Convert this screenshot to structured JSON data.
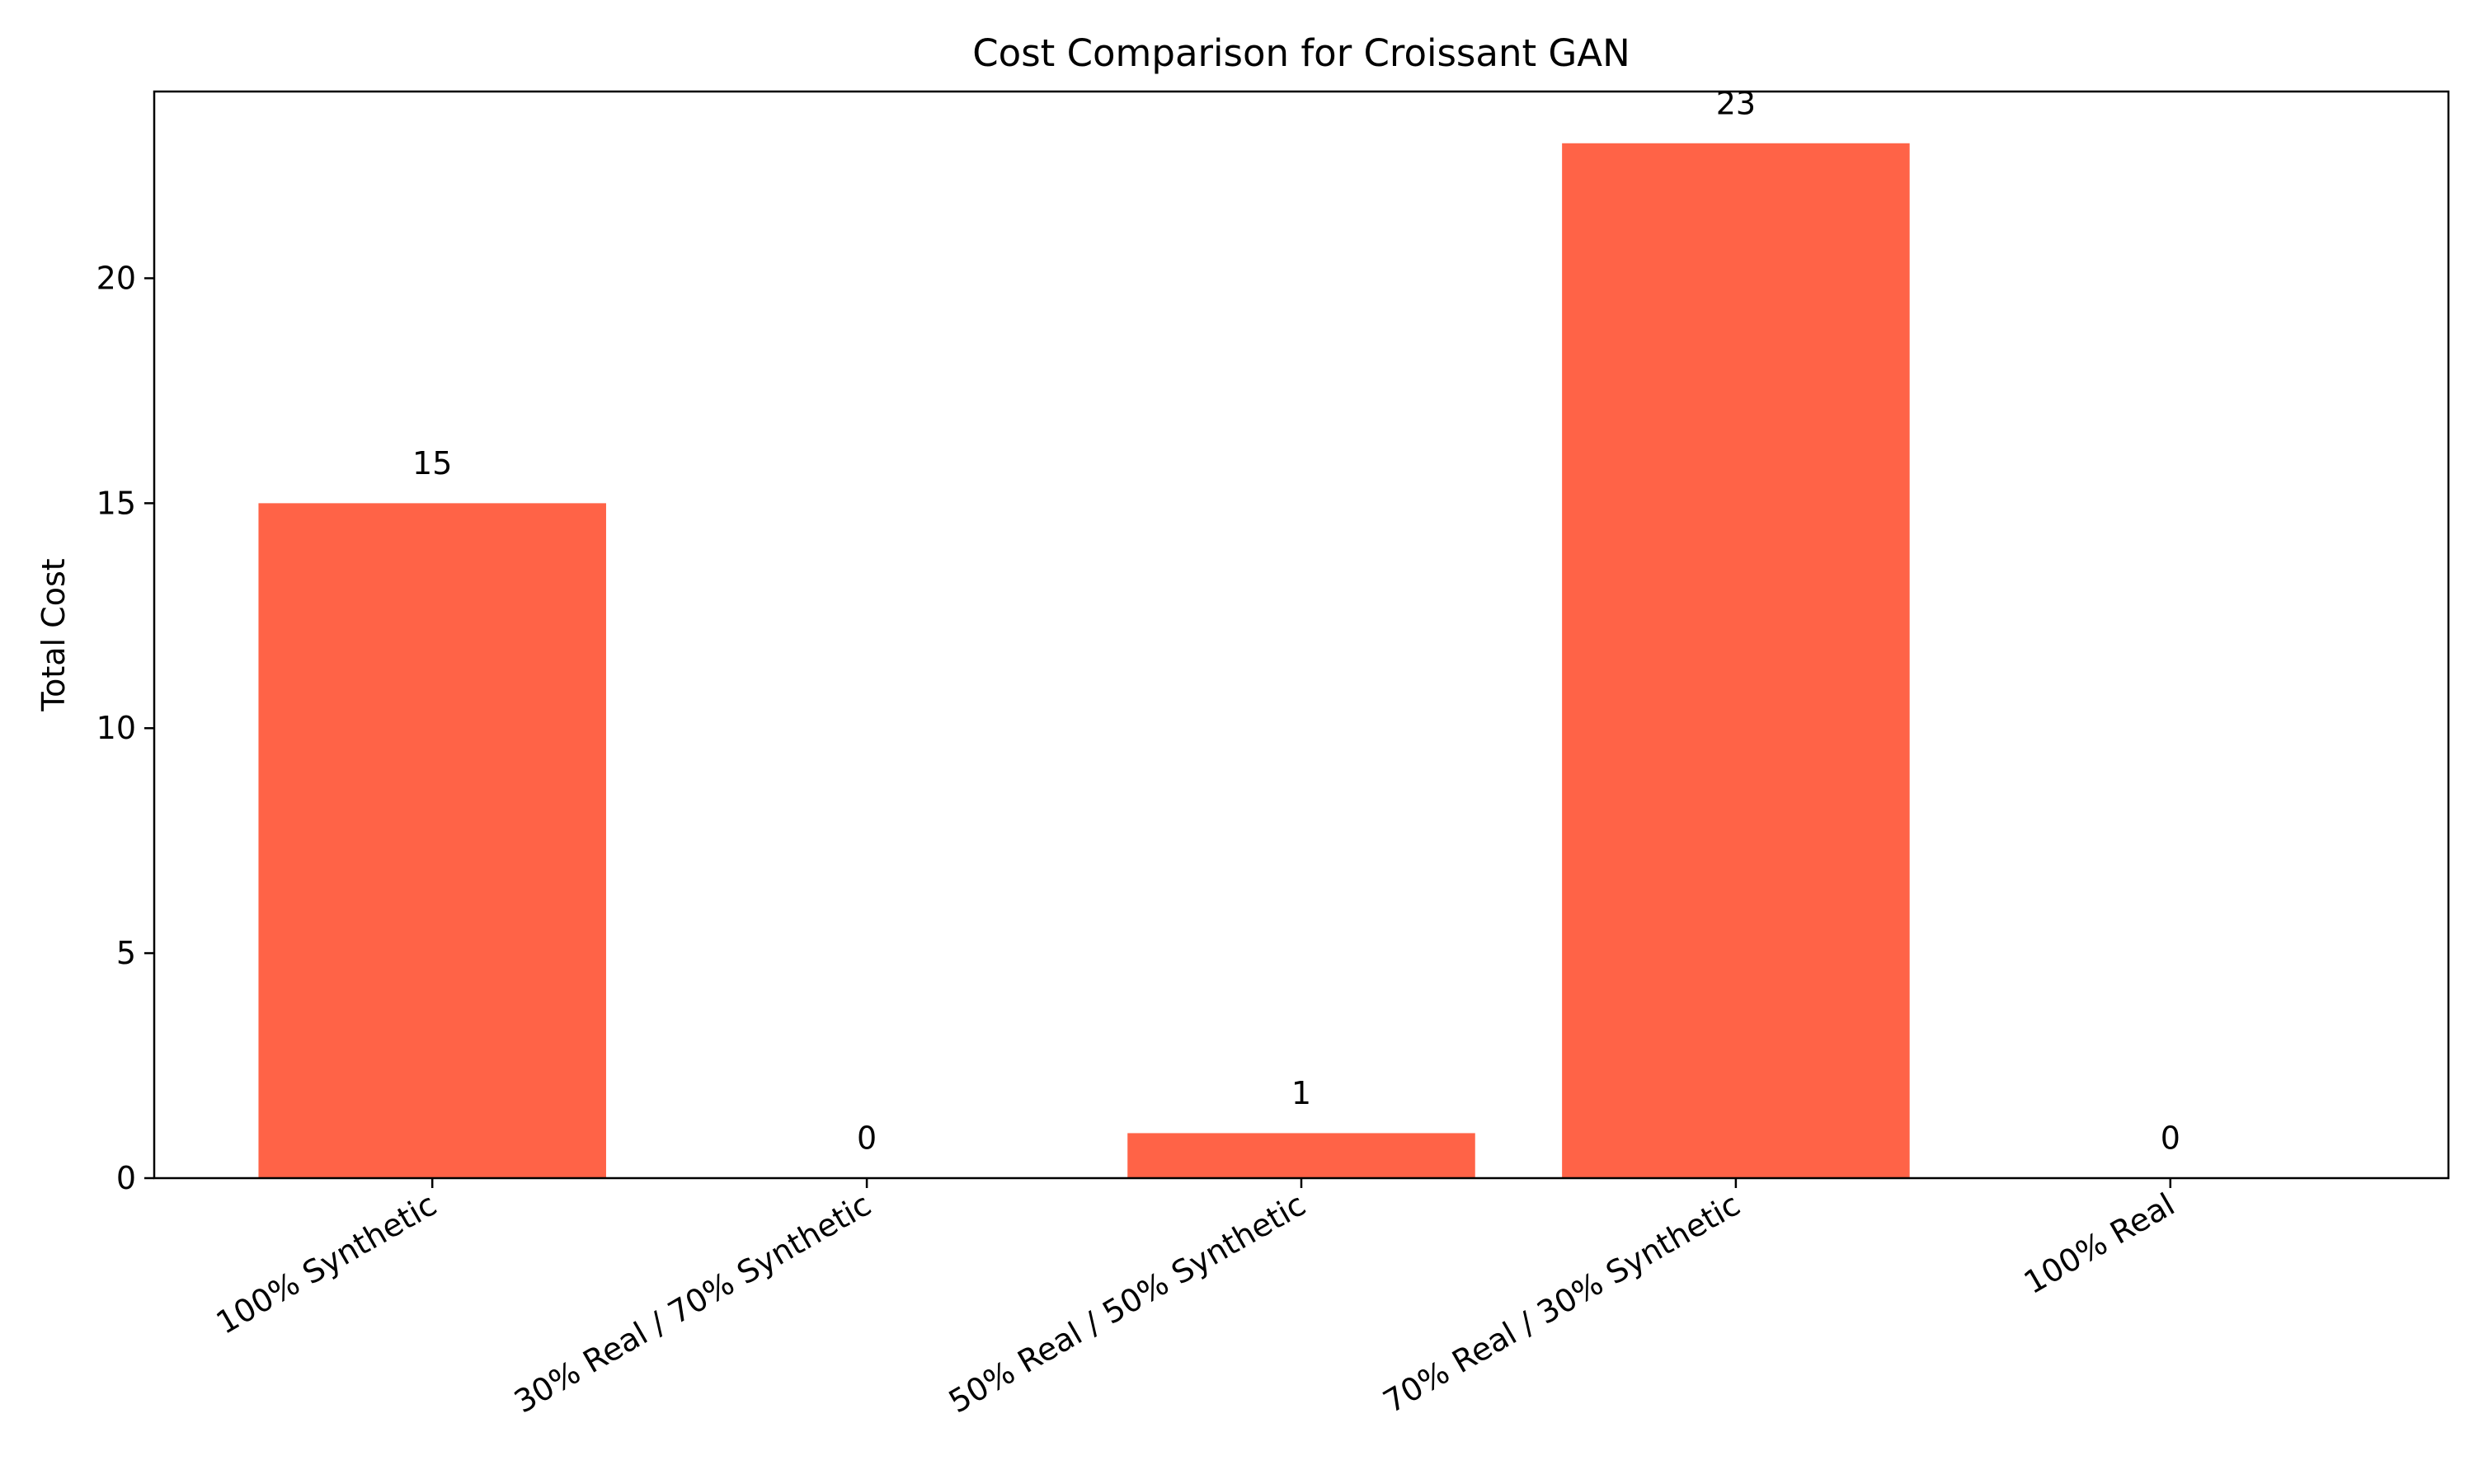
{
  "chart_data": {
    "type": "bar",
    "title": "Cost Comparison for Croissant GAN",
    "xlabel": "",
    "ylabel": "Total Cost",
    "categories": [
      "100% Synthetic",
      "30% Real / 70% Synthetic",
      "50% Real / 50% Synthetic",
      "70% Real / 30% Synthetic",
      "100% Real"
    ],
    "values": [
      15,
      0,
      1,
      23,
      0
    ],
    "data_labels": [
      "15",
      "0",
      "1",
      "23",
      "0"
    ],
    "ylim": [
      0,
      24.15
    ],
    "yticks": [
      0,
      5,
      10,
      15,
      20
    ],
    "ytick_labels": [
      "0",
      "5",
      "10",
      "15",
      "20"
    ],
    "grid": false,
    "legend": "none",
    "bar_color": "#FF6347"
  }
}
